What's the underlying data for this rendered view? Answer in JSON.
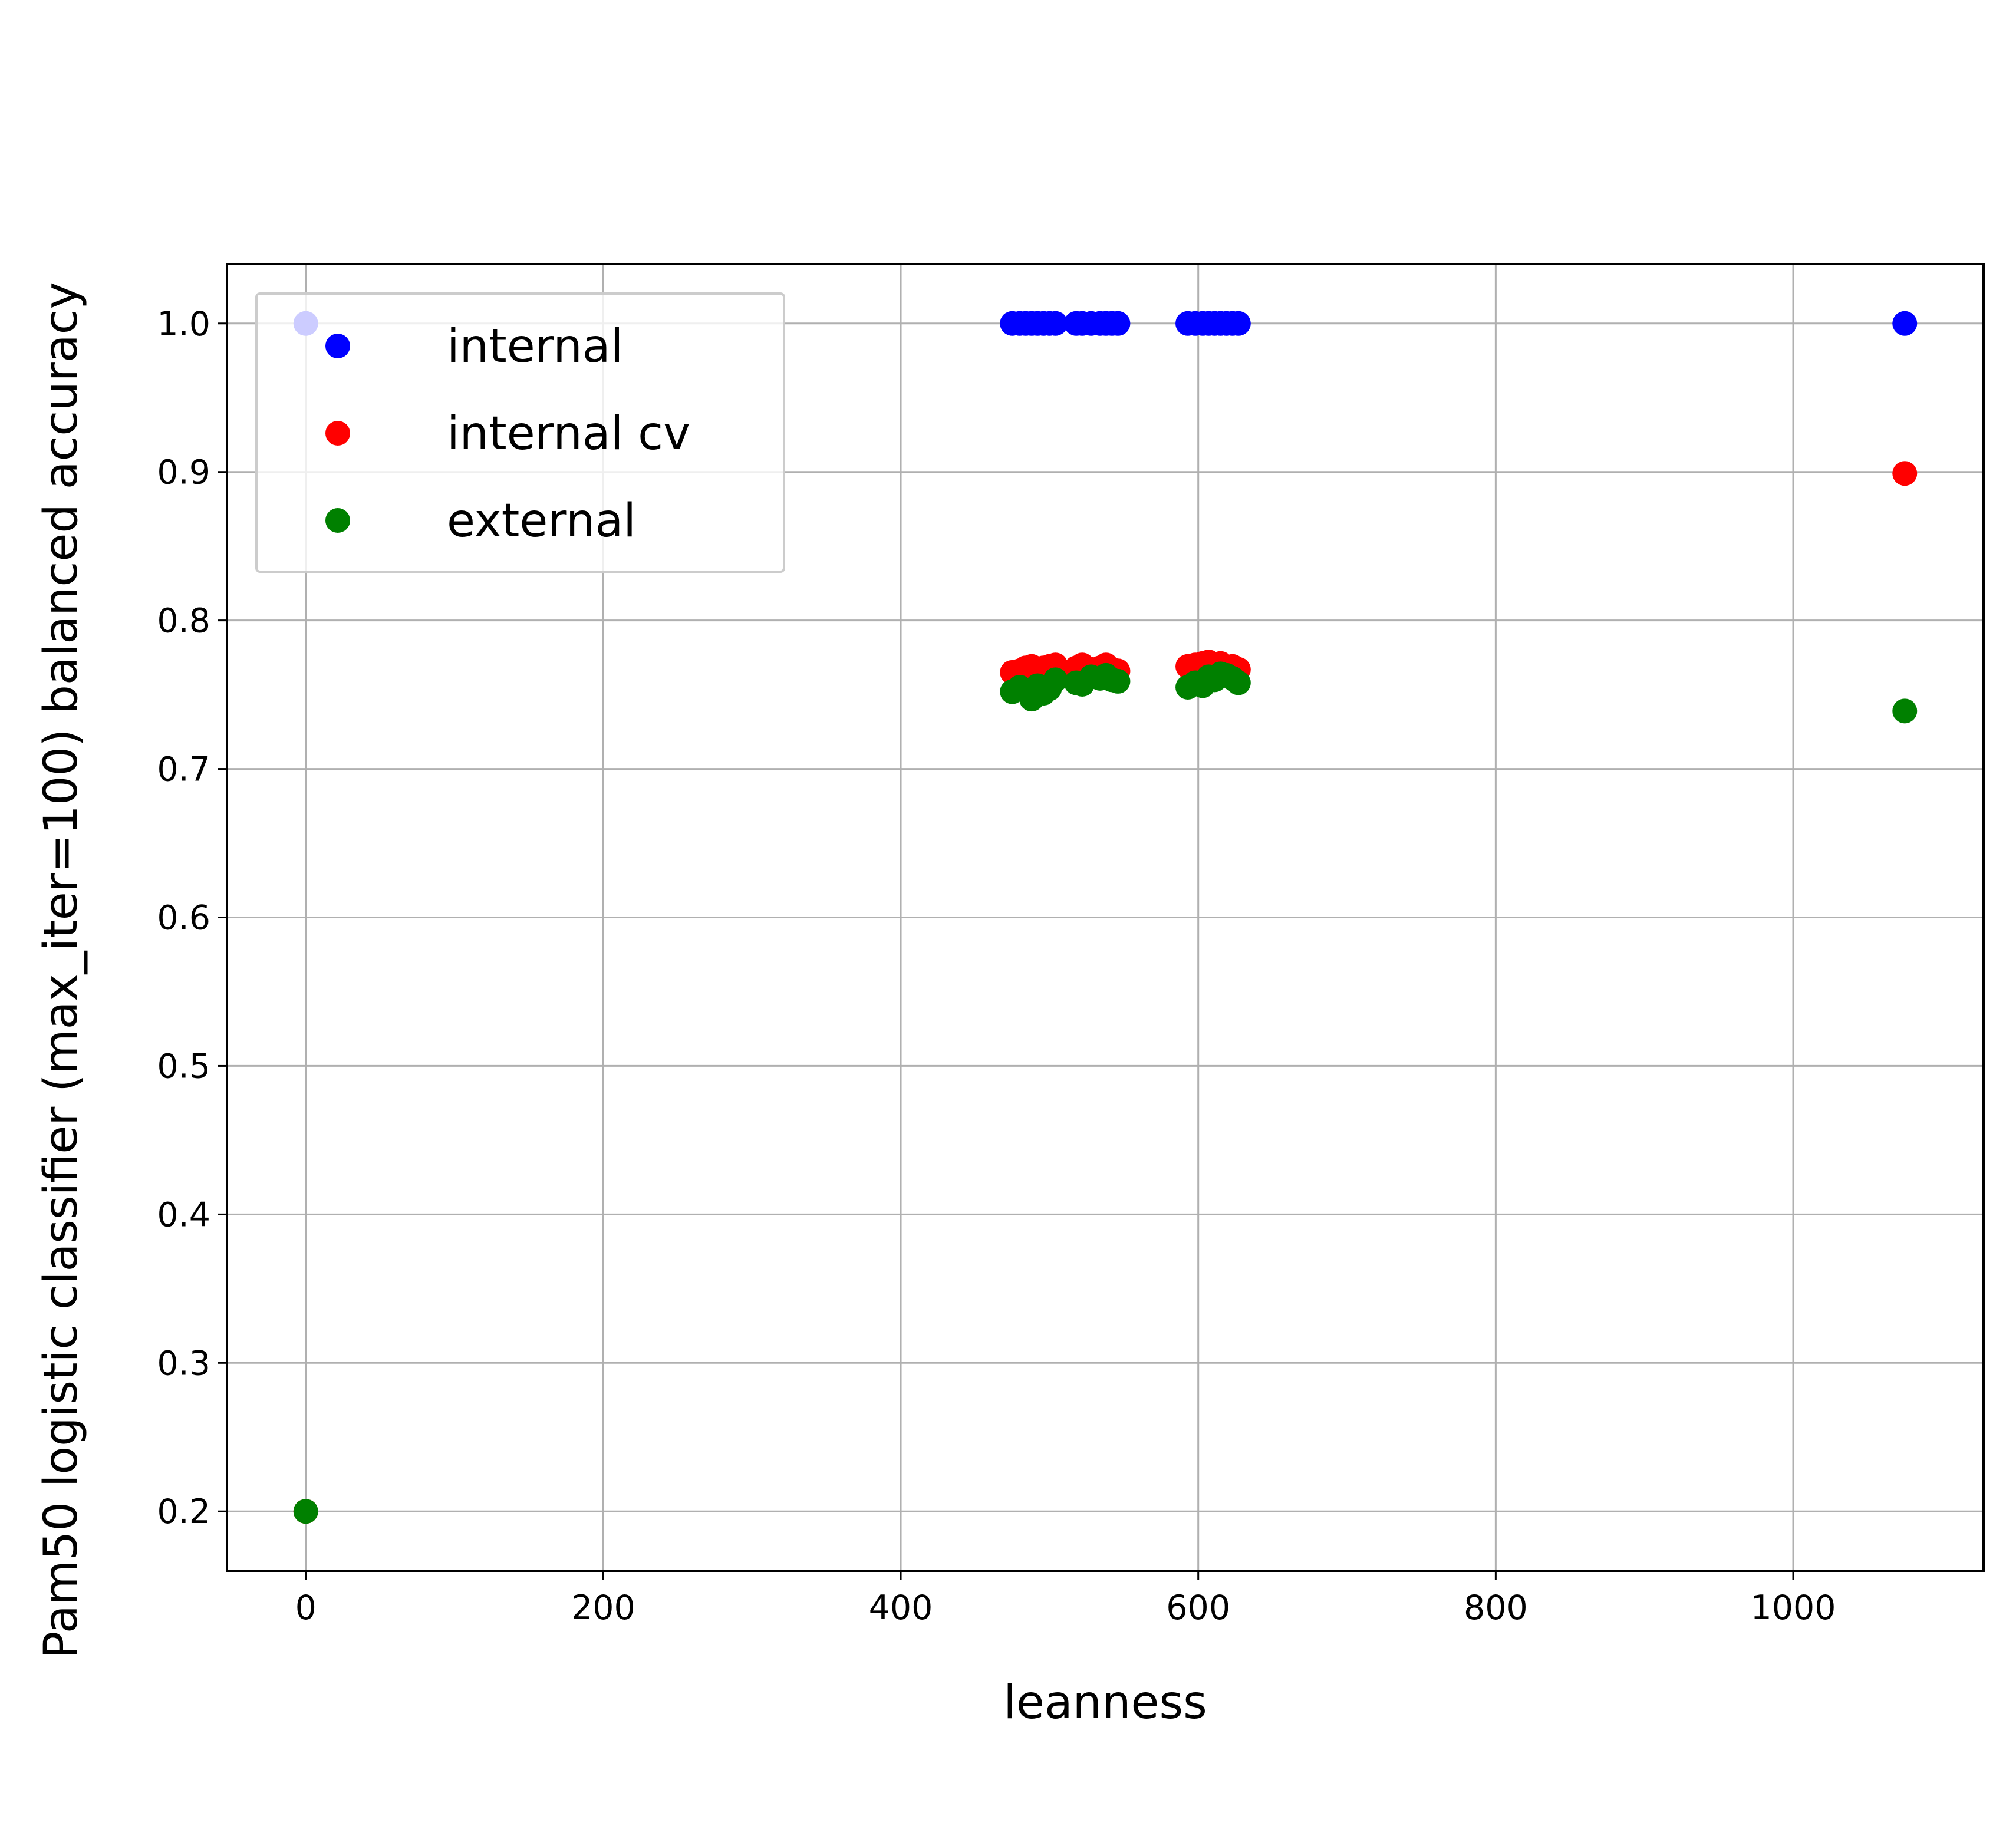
{
  "chart_data": {
    "type": "scatter",
    "xlabel": "leanness",
    "ylabel": "Pam50 logistic classifier (max_iter=100) balanced accuracy",
    "xlim": [
      -53,
      1128
    ],
    "ylim": [
      0.16,
      1.04
    ],
    "xticks": [
      0,
      200,
      400,
      600,
      800,
      1000
    ],
    "yticks": [
      0.2,
      0.3,
      0.4,
      0.5,
      0.6,
      0.7,
      0.8,
      0.9,
      1.0
    ],
    "grid": true,
    "legend_position": "upper-left",
    "series": [
      {
        "name": "internal",
        "color": "#0000ff",
        "x": [
          0,
          475,
          480,
          484,
          488,
          492,
          496,
          500,
          504,
          518,
          522,
          528,
          534,
          538,
          542,
          546,
          593,
          598,
          603,
          607,
          611,
          615,
          619,
          623,
          627,
          1075
        ],
        "y": [
          1.0,
          1.0,
          1.0,
          1.0,
          1.0,
          1.0,
          1.0,
          1.0,
          1.0,
          1.0,
          1.0,
          1.0,
          1.0,
          1.0,
          1.0,
          1.0,
          1.0,
          1.0,
          1.0,
          1.0,
          1.0,
          1.0,
          1.0,
          1.0,
          1.0,
          1.0
        ]
      },
      {
        "name": "internal cv",
        "color": "#ff0000",
        "x": [
          0,
          475,
          480,
          484,
          488,
          492,
          496,
          500,
          504,
          518,
          522,
          528,
          534,
          538,
          542,
          546,
          593,
          598,
          603,
          607,
          611,
          615,
          619,
          623,
          627,
          1075
        ],
        "y": [
          0.2,
          0.765,
          0.766,
          0.768,
          0.769,
          0.767,
          0.768,
          0.769,
          0.77,
          0.768,
          0.77,
          0.767,
          0.768,
          0.77,
          0.767,
          0.766,
          0.769,
          0.77,
          0.771,
          0.772,
          0.77,
          0.771,
          0.768,
          0.769,
          0.767,
          0.899
        ]
      },
      {
        "name": "external",
        "color": "#008000",
        "x": [
          0,
          475,
          480,
          484,
          488,
          492,
          496,
          500,
          504,
          518,
          522,
          528,
          534,
          538,
          542,
          546,
          593,
          598,
          603,
          607,
          611,
          615,
          619,
          623,
          627,
          1075
        ],
        "y": [
          0.2,
          0.752,
          0.755,
          0.753,
          0.747,
          0.756,
          0.751,
          0.754,
          0.76,
          0.758,
          0.757,
          0.762,
          0.761,
          0.763,
          0.76,
          0.759,
          0.755,
          0.758,
          0.756,
          0.762,
          0.76,
          0.764,
          0.763,
          0.761,
          0.758,
          0.739
        ]
      }
    ]
  }
}
